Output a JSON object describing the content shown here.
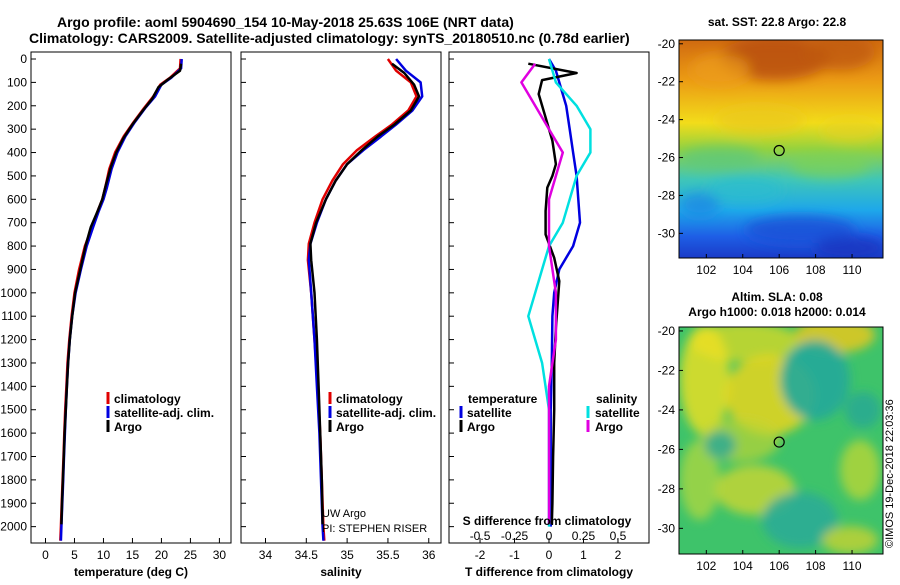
{
  "titles": {
    "line1": "Argo profile: aoml 5904690_154 10-May-2018 25.63S 106E (NRT data)",
    "line2": "Climatology: CARS2009. Satellite-adjusted climatology: synTS_20180510.nc (0.78d earlier)"
  },
  "credits": {
    "uw_argo": "UW Argo",
    "pi": "PI: STEPHEN RISER",
    "imos": "©IMOS 19-Dec-2018 22:03:36"
  },
  "colors": {
    "climatology": "#e00000",
    "satellite": "#0000e0",
    "argo": "#000000",
    "satellite_salinity": "#00e0e0",
    "argo_salinity": "#e000e0"
  },
  "chart_data": [
    {
      "id": "temperature",
      "type": "line",
      "xlabel": "temperature (deg C)",
      "ylabel": "",
      "xlim": [
        -2.5,
        32
      ],
      "ylim": [
        2070,
        -30
      ],
      "x_ticks": [
        0,
        5,
        10,
        15,
        20,
        25,
        30
      ],
      "y_ticks": [
        0,
        100,
        200,
        300,
        400,
        500,
        600,
        700,
        800,
        900,
        1000,
        1100,
        1200,
        1300,
        1400,
        1500,
        1600,
        1700,
        1800,
        1900,
        2000
      ],
      "legend": [
        "climatology",
        "satellite-adj. clim.",
        "Argo"
      ],
      "series": [
        {
          "name": "climatology",
          "color": "#e00000",
          "points": [
            [
              23.3,
              0
            ],
            [
              23.2,
              40
            ],
            [
              21.5,
              80
            ],
            [
              19.8,
              110
            ],
            [
              18.6,
              160
            ],
            [
              17.0,
              210
            ],
            [
              15.2,
              270
            ],
            [
              13.5,
              330
            ],
            [
              12.0,
              400
            ],
            [
              11.0,
              470
            ],
            [
              10.3,
              550
            ],
            [
              9.8,
              600
            ],
            [
              9.0,
              650
            ],
            [
              8.0,
              720
            ],
            [
              6.8,
              800
            ],
            [
              5.8,
              900
            ],
            [
              5.0,
              1000
            ],
            [
              4.5,
              1100
            ],
            [
              4.1,
              1200
            ],
            [
              3.8,
              1300
            ],
            [
              3.6,
              1400
            ],
            [
              3.4,
              1500
            ],
            [
              3.25,
              1600
            ],
            [
              3.1,
              1700
            ],
            [
              2.95,
              1800
            ],
            [
              2.8,
              1900
            ],
            [
              2.65,
              2000
            ],
            [
              2.55,
              2060
            ]
          ]
        },
        {
          "name": "satellite-adj. clim.",
          "color": "#0000e0",
          "points": [
            [
              23.5,
              0
            ],
            [
              23.4,
              40
            ],
            [
              21.7,
              80
            ],
            [
              20.0,
              110
            ],
            [
              18.9,
              160
            ],
            [
              17.2,
              210
            ],
            [
              15.4,
              270
            ],
            [
              13.8,
              330
            ],
            [
              12.4,
              400
            ],
            [
              11.4,
              470
            ],
            [
              10.6,
              550
            ],
            [
              10.0,
              600
            ],
            [
              9.2,
              650
            ],
            [
              8.2,
              720
            ],
            [
              7.1,
              800
            ],
            [
              6.1,
              900
            ],
            [
              5.2,
              1000
            ],
            [
              4.6,
              1100
            ],
            [
              4.2,
              1200
            ],
            [
              3.9,
              1300
            ],
            [
              3.7,
              1400
            ],
            [
              3.5,
              1500
            ],
            [
              3.35,
              1600
            ],
            [
              3.2,
              1700
            ],
            [
              3.05,
              1800
            ],
            [
              2.9,
              1900
            ],
            [
              2.75,
              2000
            ],
            [
              2.65,
              2060
            ]
          ]
        },
        {
          "name": "Argo",
          "color": "#000000",
          "points": [
            [
              23.4,
              20
            ],
            [
              23.2,
              50
            ],
            [
              21.0,
              90
            ],
            [
              19.5,
              120
            ],
            [
              18.4,
              170
            ],
            [
              16.8,
              220
            ],
            [
              15.0,
              280
            ],
            [
              13.4,
              340
            ],
            [
              12.2,
              400
            ],
            [
              11.3,
              460
            ],
            [
              10.4,
              540
            ],
            [
              9.8,
              600
            ],
            [
              9.0,
              650
            ],
            [
              7.8,
              720
            ],
            [
              6.9,
              800
            ],
            [
              6.0,
              900
            ],
            [
              5.1,
              1000
            ],
            [
              4.6,
              1100
            ],
            [
              4.2,
              1200
            ],
            [
              3.9,
              1300
            ],
            [
              3.7,
              1400
            ],
            [
              3.5,
              1500
            ],
            [
              3.3,
              1600
            ],
            [
              3.15,
              1700
            ],
            [
              3.0,
              1800
            ],
            [
              2.85,
              1900
            ],
            [
              2.75,
              1990
            ]
          ]
        }
      ]
    },
    {
      "id": "salinity",
      "type": "line",
      "xlabel": "salinity",
      "ylabel": "",
      "xlim": [
        33.7,
        36.15
      ],
      "ylim": [
        2070,
        -30
      ],
      "x_ticks": [
        34,
        34.5,
        35,
        35.5,
        36
      ],
      "x_tick_labels": [
        "34",
        "34.5",
        "35",
        "35.5",
        "36"
      ],
      "legend": [
        "climatology",
        "satellite-adj. clim.",
        "Argo"
      ],
      "series": [
        {
          "name": "climatology",
          "color": "#e00000",
          "points": [
            [
              35.5,
              0
            ],
            [
              35.6,
              50
            ],
            [
              35.78,
              100
            ],
            [
              35.85,
              160
            ],
            [
              35.75,
              220
            ],
            [
              35.55,
              280
            ],
            [
              35.35,
              330
            ],
            [
              35.12,
              390
            ],
            [
              34.95,
              450
            ],
            [
              34.82,
              520
            ],
            [
              34.7,
              600
            ],
            [
              34.6,
              700
            ],
            [
              34.53,
              790
            ],
            [
              34.52,
              860
            ],
            [
              34.56,
              1000
            ],
            [
              34.6,
              1200
            ],
            [
              34.64,
              1400
            ],
            [
              34.67,
              1600
            ],
            [
              34.69,
              1800
            ],
            [
              34.71,
              2000
            ],
            [
              34.72,
              2060
            ]
          ]
        },
        {
          "name": "satellite-adj. clim.",
          "color": "#0000e0",
          "points": [
            [
              35.6,
              0
            ],
            [
              35.72,
              50
            ],
            [
              35.9,
              100
            ],
            [
              35.92,
              160
            ],
            [
              35.8,
              220
            ],
            [
              35.6,
              280
            ],
            [
              35.42,
              330
            ],
            [
              35.2,
              390
            ],
            [
              35.0,
              450
            ],
            [
              34.86,
              520
            ],
            [
              34.74,
              600
            ],
            [
              34.63,
              700
            ],
            [
              34.55,
              790
            ],
            [
              34.53,
              860
            ],
            [
              34.56,
              1000
            ],
            [
              34.6,
              1200
            ],
            [
              34.63,
              1400
            ],
            [
              34.66,
              1600
            ],
            [
              34.68,
              1800
            ],
            [
              34.7,
              2000
            ],
            [
              34.71,
              2060
            ]
          ]
        },
        {
          "name": "Argo",
          "color": "#000000",
          "points": [
            [
              35.55,
              20
            ],
            [
              35.7,
              60
            ],
            [
              35.82,
              110
            ],
            [
              35.88,
              160
            ],
            [
              35.78,
              220
            ],
            [
              35.58,
              280
            ],
            [
              35.38,
              330
            ],
            [
              35.18,
              390
            ],
            [
              35.0,
              450
            ],
            [
              34.86,
              520
            ],
            [
              34.74,
              600
            ],
            [
              34.62,
              700
            ],
            [
              34.55,
              790
            ],
            [
              34.56,
              860
            ],
            [
              34.6,
              1000
            ],
            [
              34.63,
              1200
            ],
            [
              34.65,
              1400
            ],
            [
              34.67,
              1600
            ],
            [
              34.69,
              1800
            ],
            [
              34.7,
              1990
            ]
          ]
        }
      ]
    },
    {
      "id": "difference",
      "type": "line",
      "xlabel": "T difference from climatology",
      "top_xlabel": "S difference from climatology",
      "xlim": [
        -2.9,
        2.9
      ],
      "ylim": [
        2070,
        -30
      ],
      "x_ticks": [
        -2,
        -1,
        0,
        1,
        2
      ],
      "top_ticks": [
        -0.5,
        -0.25,
        0,
        0.25,
        0.5
      ],
      "top_tick_labels": [
        "-0.5",
        "-0.25",
        "0",
        "0.25",
        "0.5"
      ],
      "legend_left_title": "temperature",
      "legend_right_title": "salinity",
      "legend_left": [
        "satellite",
        "Argo"
      ],
      "legend_right": [
        "satellite",
        "Argo"
      ],
      "series": [
        {
          "name": "temperature satellite",
          "color": "#0000e0",
          "points": [
            [
              0.0,
              0
            ],
            [
              0.2,
              50
            ],
            [
              0.3,
              100
            ],
            [
              0.5,
              200
            ],
            [
              0.6,
              300
            ],
            [
              0.7,
              400
            ],
            [
              0.8,
              500
            ],
            [
              0.85,
              600
            ],
            [
              0.9,
              700
            ],
            [
              0.7,
              800
            ],
            [
              0.3,
              900
            ],
            [
              0.15,
              1000
            ],
            [
              0.1,
              1100
            ],
            [
              0.08,
              1300
            ],
            [
              0.05,
              1500
            ],
            [
              0.05,
              1700
            ],
            [
              0.05,
              1900
            ],
            [
              0.05,
              2000
            ]
          ]
        },
        {
          "name": "temperature Argo",
          "color": "#000000",
          "points": [
            [
              -0.6,
              20
            ],
            [
              0.8,
              60
            ],
            [
              -0.2,
              90
            ],
            [
              -0.3,
              150
            ],
            [
              -0.1,
              250
            ],
            [
              0.1,
              350
            ],
            [
              0.2,
              450
            ],
            [
              0.1,
              500
            ],
            [
              -0.05,
              550
            ],
            [
              -0.1,
              650
            ],
            [
              -0.1,
              750
            ],
            [
              0.15,
              850
            ],
            [
              0.3,
              950
            ],
            [
              0.25,
              1050
            ],
            [
              0.2,
              1150
            ],
            [
              0.15,
              1300
            ],
            [
              0.15,
              1500
            ],
            [
              0.12,
              1700
            ],
            [
              0.1,
              1900
            ],
            [
              0.08,
              1990
            ]
          ]
        },
        {
          "name": "salinity satellite",
          "color": "#00e0e0",
          "points": [
            [
              0.0,
              0
            ],
            [
              0.05,
              100
            ],
            [
              0.2,
              200
            ],
            [
              0.3,
              300
            ],
            [
              0.3,
              400
            ],
            [
              0.2,
              500
            ],
            [
              0.15,
              600
            ],
            [
              0.1,
              700
            ],
            [
              0.0,
              800
            ],
            [
              -0.05,
              900
            ],
            [
              -0.1,
              1000
            ],
            [
              -0.15,
              1100
            ],
            [
              -0.1,
              1200
            ],
            [
              -0.05,
              1300
            ],
            [
              0.0,
              1500
            ],
            [
              0.0,
              1700
            ],
            [
              0.0,
              1900
            ],
            [
              0.0,
              2000
            ]
          ]
        },
        {
          "name": "salinity Argo",
          "color": "#e000e0",
          "points": [
            [
              -0.1,
              20
            ],
            [
              -0.2,
              100
            ],
            [
              -0.1,
              200
            ],
            [
              0.0,
              300
            ],
            [
              0.1,
              400
            ],
            [
              0.05,
              500
            ],
            [
              0.0,
              600
            ],
            [
              0.0,
              800
            ],
            [
              0.05,
              1000
            ],
            [
              0.05,
              1200
            ],
            [
              0.0,
              1400
            ],
            [
              0.0,
              1600
            ],
            [
              0.0,
              1800
            ],
            [
              0.0,
              1990
            ]
          ]
        }
      ]
    },
    {
      "id": "sst-map",
      "type": "heatmap",
      "title": "sat. SST: 22.8 Argo: 22.8",
      "xlim": [
        100.5,
        111.7
      ],
      "ylim": [
        -31.3,
        -19.8
      ],
      "x_ticks": [
        102,
        104,
        106,
        108,
        110
      ],
      "y_ticks": [
        -20,
        -22,
        -24,
        -26,
        -28,
        -30
      ],
      "profile_location": [
        106,
        -25.63
      ]
    },
    {
      "id": "sla-map",
      "type": "heatmap",
      "title": "Altim. SLA: 0.08",
      "subtitle": "Argo h1000: 0.018 h2000: 0.014",
      "xlim": [
        100.5,
        111.7
      ],
      "ylim": [
        -31.3,
        -19.8
      ],
      "x_ticks": [
        102,
        104,
        106,
        108,
        110
      ],
      "y_ticks": [
        -20,
        -22,
        -24,
        -26,
        -28,
        -30
      ],
      "profile_location": [
        106,
        -25.63
      ]
    }
  ]
}
